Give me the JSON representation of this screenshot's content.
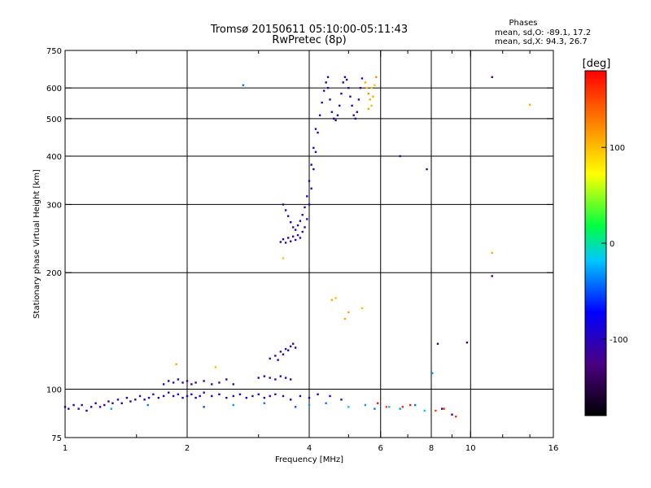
{
  "chart_data": {
    "type": "scatter",
    "title": "Tromsø 20150611 05:10:00-05:11:43",
    "subtitle": "RwPretec (8p)",
    "xlabel": "Frequency [MHz]",
    "ylabel": "Stationary phase Virtual Height [km]",
    "x_scale": "log",
    "y_scale": "log",
    "xlim": [
      1,
      16
    ],
    "ylim": [
      75,
      750
    ],
    "x_ticks": [
      1,
      2,
      4,
      6,
      8,
      10,
      16
    ],
    "y_ticks": [
      75,
      100,
      200,
      300,
      400,
      500,
      600,
      750
    ],
    "grid": true,
    "phases_header": "Phases",
    "phases_o": "mean, sd,O: -89.1, 17.2",
    "phases_x": "mean, sd,X:  94.3, 26.7",
    "colorbar": {
      "label": "[deg]",
      "range": [
        -180,
        180
      ],
      "ticks": [
        100,
        0,
        -100
      ]
    },
    "series": [
      {
        "points": [
          [
            1.0,
            90,
            -110
          ],
          [
            1.02,
            89,
            -100
          ],
          [
            1.05,
            91,
            -90
          ],
          [
            1.08,
            89,
            -110
          ],
          [
            1.1,
            91,
            -100
          ],
          [
            1.13,
            88,
            -90
          ],
          [
            1.16,
            90,
            -110
          ],
          [
            1.19,
            92,
            -100
          ],
          [
            1.22,
            90,
            -120
          ],
          [
            1.25,
            91,
            -90
          ],
          [
            1.28,
            93,
            -110
          ],
          [
            1.31,
            92,
            -100
          ],
          [
            1.35,
            94,
            -110
          ],
          [
            1.38,
            92,
            -90
          ],
          [
            1.42,
            95,
            -100
          ],
          [
            1.45,
            93,
            -120
          ],
          [
            1.49,
            94,
            -100
          ],
          [
            1.53,
            96,
            -110
          ],
          [
            1.57,
            94,
            -90
          ],
          [
            1.61,
            95,
            -100
          ],
          [
            1.65,
            97,
            -110
          ],
          [
            1.7,
            95,
            -100
          ],
          [
            1.75,
            96,
            -90
          ],
          [
            1.8,
            98,
            -110
          ],
          [
            1.85,
            96,
            -100
          ],
          [
            1.9,
            97,
            -80
          ],
          [
            1.95,
            95,
            -100
          ],
          [
            2.0,
            96,
            -90
          ],
          [
            2.05,
            97,
            -110
          ],
          [
            2.1,
            95,
            -100
          ],
          [
            2.15,
            96,
            -90
          ],
          [
            2.2,
            98,
            -110
          ],
          [
            2.3,
            96,
            -100
          ],
          [
            2.4,
            97,
            -80
          ],
          [
            2.5,
            95,
            -100
          ],
          [
            2.6,
            96,
            -110
          ],
          [
            2.7,
            97,
            -100
          ],
          [
            2.8,
            95,
            -90
          ],
          [
            2.9,
            96,
            -110
          ],
          [
            3.0,
            97,
            -100
          ],
          [
            3.1,
            95,
            -100
          ],
          [
            3.2,
            96,
            -90
          ],
          [
            3.3,
            97,
            -110
          ],
          [
            3.45,
            96,
            -100
          ],
          [
            3.6,
            94,
            -100
          ],
          [
            3.8,
            96,
            -110
          ],
          [
            4.0,
            95,
            -100
          ],
          [
            4.2,
            97,
            -90
          ],
          [
            4.5,
            96,
            -100
          ],
          [
            4.8,
            94,
            -110
          ]
        ]
      },
      {
        "points": [
          [
            1.75,
            103,
            -110
          ],
          [
            1.8,
            105,
            -100
          ],
          [
            1.85,
            104,
            -120
          ],
          [
            1.9,
            106,
            -100
          ],
          [
            1.95,
            104,
            -110
          ],
          [
            2.0,
            105,
            -100
          ],
          [
            2.05,
            103,
            -120
          ],
          [
            2.1,
            104,
            -100
          ],
          [
            2.2,
            105,
            -110
          ],
          [
            2.3,
            103,
            -100
          ],
          [
            2.4,
            104,
            -120
          ],
          [
            2.5,
            106,
            -100
          ],
          [
            2.6,
            103,
            -110
          ],
          [
            3.0,
            107,
            -110
          ],
          [
            3.1,
            108,
            -100
          ],
          [
            3.2,
            107,
            -120
          ],
          [
            3.3,
            106,
            -100
          ],
          [
            3.4,
            108,
            -110
          ],
          [
            3.5,
            107,
            -100
          ],
          [
            3.6,
            106,
            -120
          ]
        ]
      },
      {
        "points": [
          [
            3.2,
            120,
            -110
          ],
          [
            3.3,
            122,
            -100
          ],
          [
            3.4,
            125,
            -120
          ],
          [
            3.5,
            127,
            -110
          ],
          [
            3.6,
            129,
            -100
          ],
          [
            3.7,
            128,
            -110
          ],
          [
            3.35,
            119,
            -100
          ],
          [
            3.45,
            123,
            -110
          ],
          [
            3.55,
            126,
            -100
          ],
          [
            3.65,
            131,
            -120
          ]
        ]
      },
      {
        "points": [
          [
            3.4,
            240,
            -110
          ],
          [
            3.45,
            244,
            -100
          ],
          [
            3.5,
            239,
            -110
          ],
          [
            3.55,
            246,
            -100
          ],
          [
            3.6,
            241,
            -120
          ],
          [
            3.65,
            248,
            -110
          ],
          [
            3.7,
            243,
            -100
          ],
          [
            3.75,
            250,
            -110
          ],
          [
            3.8,
            246,
            -100
          ],
          [
            3.85,
            255,
            -110
          ],
          [
            3.9,
            262,
            -100
          ],
          [
            3.95,
            275,
            -110
          ],
          [
            4.0,
            300,
            -100
          ],
          [
            4.05,
            330,
            -110
          ],
          [
            4.1,
            370,
            -100
          ],
          [
            4.15,
            410,
            -110
          ],
          [
            4.2,
            460,
            -100
          ],
          [
            4.25,
            510,
            -110
          ],
          [
            4.3,
            550,
            -100
          ],
          [
            4.35,
            590,
            -110
          ],
          [
            4.4,
            620,
            -100
          ],
          [
            4.45,
            640,
            -110
          ],
          [
            3.45,
            300,
            -110
          ],
          [
            3.5,
            290,
            -100
          ],
          [
            3.55,
            280,
            -110
          ],
          [
            3.6,
            270,
            -100
          ],
          [
            3.65,
            262,
            -110
          ],
          [
            3.7,
            258,
            -100
          ],
          [
            3.75,
            265,
            -110
          ],
          [
            3.8,
            272,
            -100
          ],
          [
            3.85,
            282,
            -110
          ],
          [
            3.9,
            295,
            -100
          ],
          [
            3.95,
            315,
            -110
          ],
          [
            4.0,
            345,
            -100
          ],
          [
            4.05,
            380,
            -110
          ],
          [
            4.1,
            420,
            -100
          ],
          [
            4.15,
            470,
            -110
          ]
        ]
      },
      {
        "points": [
          [
            4.45,
            600,
            -110
          ],
          [
            4.5,
            560,
            -100
          ],
          [
            4.55,
            520,
            -110
          ],
          [
            4.6,
            500,
            -100
          ],
          [
            4.65,
            495,
            -110
          ],
          [
            4.7,
            510,
            -100
          ],
          [
            4.75,
            540,
            -110
          ],
          [
            4.8,
            580,
            -100
          ],
          [
            4.85,
            620,
            -110
          ],
          [
            4.9,
            640,
            -100
          ],
          [
            4.95,
            630,
            -110
          ],
          [
            5.0,
            600,
            -100
          ],
          [
            5.05,
            570,
            -110
          ],
          [
            5.1,
            540,
            -100
          ],
          [
            5.15,
            510,
            -110
          ],
          [
            5.2,
            500,
            -100
          ],
          [
            5.25,
            520,
            -110
          ],
          [
            5.3,
            560,
            -100
          ],
          [
            5.35,
            600,
            -110
          ],
          [
            5.4,
            635,
            -100
          ]
        ]
      },
      {
        "points": [
          [
            5.5,
            620,
            110
          ],
          [
            5.55,
            600,
            100
          ],
          [
            5.6,
            580,
            120
          ],
          [
            5.65,
            560,
            110
          ],
          [
            5.7,
            540,
            100
          ],
          [
            5.75,
            570,
            110
          ],
          [
            5.8,
            610,
            100
          ],
          [
            5.85,
            640,
            120
          ],
          [
            5.6,
            530,
            110
          ],
          [
            5.7,
            600,
            100
          ],
          [
            4.55,
            170,
            110
          ],
          [
            4.65,
            172,
            100
          ],
          [
            5.0,
            158,
            110
          ],
          [
            5.4,
            162,
            100
          ],
          [
            4.9,
            152,
            110
          ],
          [
            3.45,
            218,
            100
          ],
          [
            1.88,
            116,
            110
          ],
          [
            2.35,
            114,
            100
          ]
        ]
      },
      {
        "points": [
          [
            4.0,
            91,
            -30
          ],
          [
            4.4,
            92,
            -40
          ],
          [
            5.0,
            90,
            -20
          ],
          [
            5.5,
            91,
            -30
          ],
          [
            5.8,
            89,
            -40
          ],
          [
            6.3,
            90,
            -20
          ],
          [
            6.7,
            89,
            -30
          ],
          [
            7.3,
            91,
            -40
          ],
          [
            7.7,
            88,
            -20
          ],
          [
            3.7,
            90,
            -50
          ],
          [
            3.1,
            92,
            -40
          ],
          [
            2.6,
            91,
            -30
          ],
          [
            2.2,
            90,
            -50
          ],
          [
            1.6,
            91,
            -40
          ],
          [
            1.3,
            89,
            -30
          ]
        ]
      },
      {
        "points": [
          [
            6.8,
            90,
            160
          ],
          [
            7.1,
            91,
            170
          ],
          [
            8.2,
            88,
            150
          ],
          [
            8.6,
            89,
            160
          ],
          [
            5.9,
            92,
            170
          ],
          [
            6.2,
            90,
            150
          ],
          [
            9.2,
            85,
            160
          ]
        ]
      },
      {
        "points": [
          [
            2.75,
            610,
            -40
          ],
          [
            8.05,
            110,
            -30
          ],
          [
            6.7,
            400,
            -110
          ],
          [
            7.8,
            370,
            -120
          ],
          [
            8.3,
            131,
            -130
          ],
          [
            9.8,
            132,
            -140
          ],
          [
            11.3,
            640,
            -120
          ],
          [
            11.3,
            196,
            -130
          ],
          [
            14.0,
            543,
            110
          ],
          [
            11.3,
            225,
            110
          ],
          [
            9.0,
            86,
            -110
          ],
          [
            8.5,
            89,
            -120
          ]
        ]
      }
    ]
  }
}
